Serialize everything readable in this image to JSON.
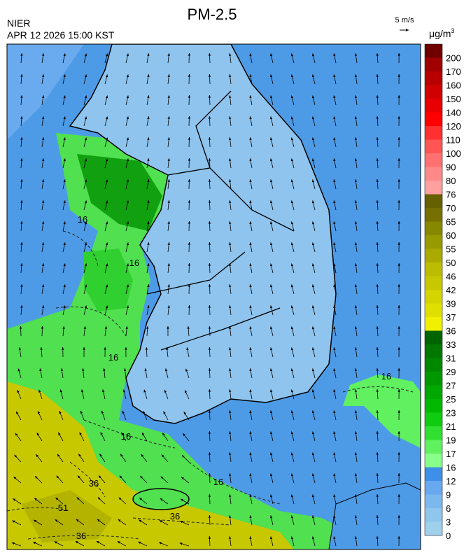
{
  "header": {
    "title": "PM-2.5",
    "agency": "NIER",
    "timestamp": "APR 12 2026 15:00 KST",
    "wind_scale": "5 m/s",
    "unit": {
      "base": "μg/m",
      "sup": "3"
    }
  },
  "legend": {
    "levels": [
      {
        "label": "0",
        "color": "#9fd0ec"
      },
      {
        "label": "3",
        "color": "#8ec6ee"
      },
      {
        "label": "6",
        "color": "#7ab8ee"
      },
      {
        "label": "9",
        "color": "#68a8ee"
      },
      {
        "label": "12",
        "color": "#3d8fe8"
      },
      {
        "label": "16",
        "color": "#88ff88"
      },
      {
        "label": "17",
        "color": "#60f060"
      },
      {
        "label": "19",
        "color": "#30e030"
      },
      {
        "label": "21",
        "color": "#10cc10"
      },
      {
        "label": "23",
        "color": "#00b800"
      },
      {
        "label": "25",
        "color": "#00a800"
      },
      {
        "label": "27",
        "color": "#009800"
      },
      {
        "label": "29",
        "color": "#008800"
      },
      {
        "label": "31",
        "color": "#007800"
      },
      {
        "label": "33",
        "color": "#006400"
      },
      {
        "label": "36",
        "color": "#f0f000"
      },
      {
        "label": "37",
        "color": "#e0e000"
      },
      {
        "label": "39",
        "color": "#d4d400"
      },
      {
        "label": "42",
        "color": "#c8c800"
      },
      {
        "label": "46",
        "color": "#bcbc00"
      },
      {
        "label": "50",
        "color": "#aaaa00"
      },
      {
        "label": "55",
        "color": "#999900"
      },
      {
        "label": "60",
        "color": "#888800"
      },
      {
        "label": "65",
        "color": "#777000"
      },
      {
        "label": "70",
        "color": "#666000"
      },
      {
        "label": "76",
        "color": "#ffa0a0"
      },
      {
        "label": "80",
        "color": "#ff8888"
      },
      {
        "label": "90",
        "color": "#ff7070"
      },
      {
        "label": "100",
        "color": "#ff5555"
      },
      {
        "label": "110",
        "color": "#ff3030"
      },
      {
        "label": "120",
        "color": "#ff0000"
      },
      {
        "label": "140",
        "color": "#e80000"
      },
      {
        "label": "150",
        "color": "#d00000"
      },
      {
        "label": "160",
        "color": "#b80000"
      },
      {
        "label": "170",
        "color": "#a00000"
      },
      {
        "label": "200",
        "color": "#700000"
      }
    ]
  },
  "map": {
    "contour_labels": [
      "16",
      "16",
      "16",
      "16",
      "16",
      "16",
      "36",
      "36",
      "51",
      "36"
    ]
  }
}
